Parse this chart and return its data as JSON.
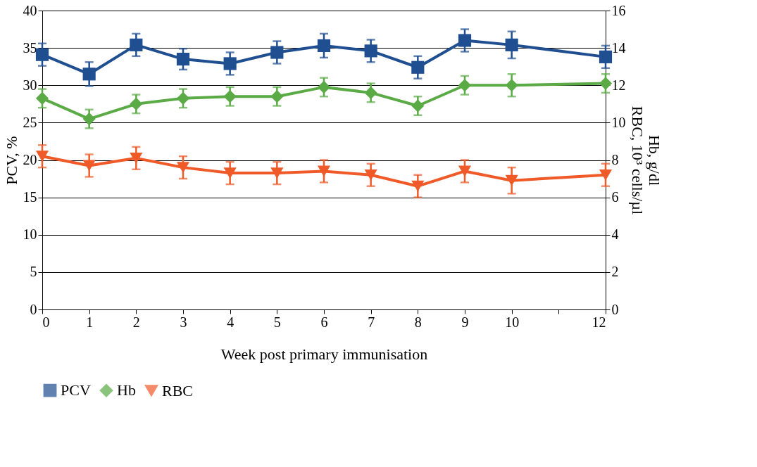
{
  "chart_data": {
    "type": "line",
    "xlabel": "Week post primary immunisation",
    "ylabel": "PCV, %",
    "y2label": "Hb, g/dl\nRBC, 10³ cells/µl",
    "x": [
      0,
      1,
      2,
      3,
      4,
      5,
      6,
      7,
      8,
      9,
      10,
      12
    ],
    "series": [
      {
        "name": "PCV",
        "color": "#1f4e91",
        "marker": "square",
        "values": [
          34.1,
          31.5,
          35.4,
          33.5,
          32.9,
          34.4,
          35.3,
          34.6,
          32.4,
          36.0,
          35.4,
          33.8
        ],
        "errors": [
          1.5,
          1.6,
          1.5,
          1.4,
          1.5,
          1.5,
          1.6,
          1.5,
          1.5,
          1.5,
          1.8,
          1.5
        ]
      },
      {
        "name": "Hb",
        "color": "#5aaa46",
        "marker": "diamond",
        "axis": "y2",
        "values": [
          11.3,
          10.2,
          11.0,
          11.3,
          11.4,
          11.4,
          11.9,
          11.6,
          10.9,
          12.0,
          12.0,
          12.1
        ],
        "errors": [
          0.5,
          0.5,
          0.5,
          0.5,
          0.5,
          0.5,
          0.5,
          0.5,
          0.5,
          0.5,
          0.6,
          0.5
        ]
      },
      {
        "name": "RBC",
        "color": "#f05a28",
        "marker": "triangle-down",
        "axis": "y2",
        "values": [
          8.2,
          7.7,
          8.1,
          7.6,
          7.3,
          7.3,
          7.4,
          7.2,
          6.6,
          7.4,
          6.9,
          7.2
        ],
        "errors": [
          0.6,
          0.6,
          0.6,
          0.6,
          0.6,
          0.6,
          0.6,
          0.6,
          0.6,
          0.6,
          0.7,
          0.6
        ]
      }
    ],
    "xlim": [
      0,
      12
    ],
    "xticks": [
      0,
      1,
      2,
      3,
      4,
      5,
      6,
      7,
      8,
      9,
      10,
      {
        "value": 11,
        "label": null
      },
      12
    ],
    "ylim": [
      0,
      40
    ],
    "yticks": [
      0,
      5,
      10,
      15,
      20,
      25,
      30,
      35,
      40
    ],
    "y2lim": [
      0,
      16
    ],
    "y2ticks": [
      0,
      2,
      4,
      6,
      8,
      10,
      12,
      14,
      16
    ],
    "grid": "y",
    "legend": "bottom",
    "line_style": "solid"
  }
}
